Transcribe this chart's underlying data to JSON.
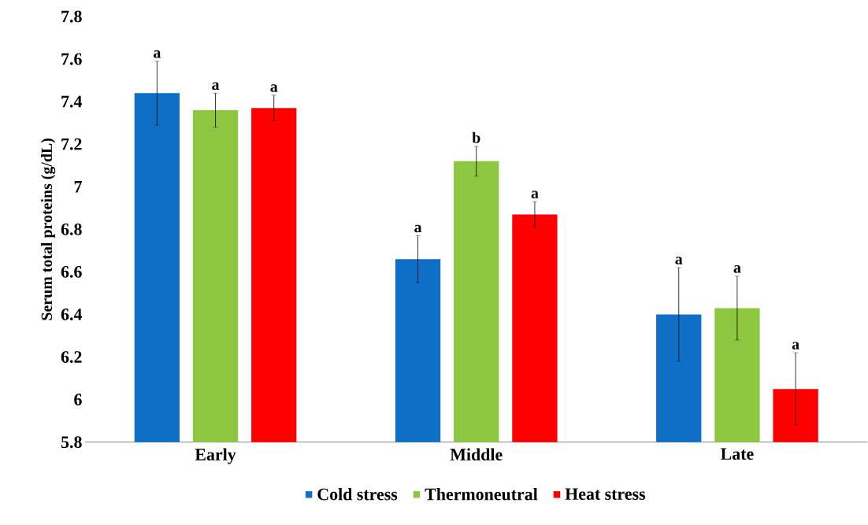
{
  "chart_data": {
    "type": "bar",
    "ylabel": "Serum total proteins (g/dL)",
    "categories": [
      "Early",
      "Middle",
      "Late"
    ],
    "series": [
      {
        "name": "Cold stress",
        "color": "#0f6fc6",
        "values": [
          7.44,
          6.66,
          6.4
        ],
        "errors": [
          0.15,
          0.11,
          0.22
        ],
        "value_labels": [
          "a",
          "a",
          "a"
        ]
      },
      {
        "name": "Thermoneutral",
        "color": "#8dc63f",
        "values": [
          7.36,
          7.12,
          6.43
        ],
        "errors": [
          0.08,
          0.07,
          0.15
        ],
        "value_labels": [
          "a",
          "b",
          "a"
        ]
      },
      {
        "name": "Heat stress",
        "color": "#ff0000",
        "values": [
          7.37,
          6.87,
          6.05
        ],
        "errors": [
          0.06,
          0.06,
          0.17
        ],
        "value_labels": [
          "a",
          "a",
          "a"
        ]
      }
    ],
    "ylim": [
      5.8,
      7.8
    ],
    "yticks": [
      5.8,
      6,
      6.2,
      6.4,
      6.6,
      6.8,
      7,
      7.2,
      7.4,
      7.6,
      7.8
    ],
    "grid": false,
    "legend": "bottom"
  }
}
